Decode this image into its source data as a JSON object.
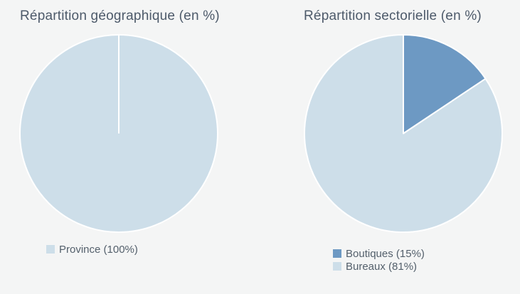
{
  "colors": {
    "background": "#f4f5f5",
    "slice_border": "#ffffff",
    "boutiques_blue": "#6d99c3",
    "bureaux_light_blue": "#cddee9",
    "title_text": "#4d5a6a",
    "legend_text": "#54606c"
  },
  "chart_data": [
    {
      "type": "pie",
      "title": "Répartition géographique (en %)",
      "legend_position": "bottom-left",
      "slices": [
        {
          "label": "Province",
          "value": 100,
          "percent_label": "100%",
          "legend": "Province (100%)",
          "color": "#cddee9"
        }
      ]
    },
    {
      "type": "pie",
      "title": "Répartition sectorielle (en %)",
      "legend_position": "bottom-left",
      "slices": [
        {
          "label": "Boutiques",
          "value": 15,
          "percent_label": "15%",
          "legend": "Boutiques (15%)",
          "color": "#6d99c3"
        },
        {
          "label": "Bureaux",
          "value": 81,
          "percent_label": "81%",
          "legend": "Bureaux (81%)",
          "color": "#cddee9"
        }
      ]
    }
  ]
}
